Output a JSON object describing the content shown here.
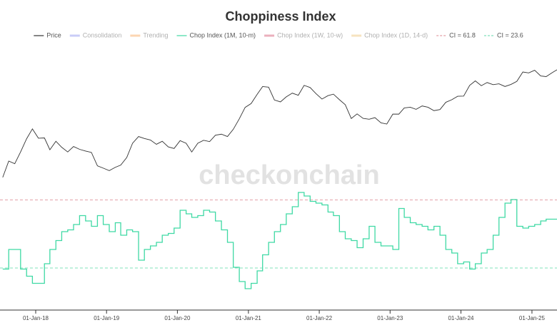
{
  "chart_data": {
    "type": "line",
    "title": "Choppiness Index",
    "watermark": "checkonchain",
    "x": [
      "2017-07-15",
      "2017-08-15",
      "2017-09-15",
      "2017-10-15",
      "2017-11-15",
      "2017-12-15",
      "2018-01-15",
      "2018-02-15",
      "2018-03-15",
      "2018-04-15",
      "2018-05-15",
      "2018-06-15",
      "2018-07-15",
      "2018-08-15",
      "2018-09-15",
      "2018-10-15",
      "2018-11-15",
      "2018-12-15",
      "2019-01-15",
      "2019-02-15",
      "2019-03-15",
      "2019-04-15",
      "2019-05-15",
      "2019-06-15",
      "2019-07-15",
      "2019-08-15",
      "2019-09-15",
      "2019-10-15",
      "2019-11-15",
      "2019-12-15",
      "2020-01-15",
      "2020-02-15",
      "2020-03-15",
      "2020-04-15",
      "2020-05-15",
      "2020-06-15",
      "2020-07-15",
      "2020-08-15",
      "2020-09-15",
      "2020-10-15",
      "2020-11-15",
      "2020-12-15",
      "2021-01-15",
      "2021-02-15",
      "2021-03-15",
      "2021-04-15",
      "2021-05-15",
      "2021-06-15",
      "2021-07-15",
      "2021-08-15",
      "2021-09-15",
      "2021-10-15",
      "2021-11-15",
      "2021-12-15",
      "2022-01-15",
      "2022-02-15",
      "2022-03-15",
      "2022-04-15",
      "2022-05-15",
      "2022-06-15",
      "2022-07-15",
      "2022-08-15",
      "2022-09-15",
      "2022-10-15",
      "2022-11-15",
      "2022-12-15",
      "2023-01-15",
      "2023-02-15",
      "2023-03-15",
      "2023-04-15",
      "2023-05-15",
      "2023-06-15",
      "2023-07-15",
      "2023-08-15",
      "2023-09-15",
      "2023-10-15",
      "2023-11-15",
      "2023-12-15",
      "2024-01-15",
      "2024-02-15",
      "2024-03-15",
      "2024-04-15",
      "2024-05-15",
      "2024-06-15",
      "2024-07-15",
      "2024-08-15",
      "2024-09-15",
      "2024-10-15",
      "2024-11-15",
      "2024-12-15",
      "2025-01-15",
      "2025-02-15",
      "2025-03-15",
      "2025-04-15",
      "2025-05-10"
    ],
    "xlim": [
      "2017-07-01",
      "2025-05-10"
    ],
    "xticks": [
      {
        "value": "2018-01-01",
        "label": "01-Jan-18"
      },
      {
        "value": "2019-01-01",
        "label": "01-Jan-19"
      },
      {
        "value": "2020-01-01",
        "label": "01-Jan-20"
      },
      {
        "value": "2021-01-01",
        "label": "01-Jan-21"
      },
      {
        "value": "2022-01-01",
        "label": "01-Jan-22"
      },
      {
        "value": "2023-01-01",
        "label": "01-Jan-23"
      },
      {
        "value": "2024-01-01",
        "label": "01-Jan-24"
      },
      {
        "value": "2025-01-01",
        "label": "01-Jan-25"
      }
    ],
    "ylim": [
      30,
      260000
    ],
    "y_log": true,
    "y2lim": [
      0,
      150
    ],
    "series": [
      {
        "name": "Price",
        "color": "#333333",
        "values": [
          2700,
          4700,
          4300,
          6400,
          10000,
          14000,
          10200,
          10300,
          6900,
          9200,
          7500,
          6400,
          7700,
          7000,
          6600,
          6300,
          4000,
          3700,
          3400,
          3800,
          4100,
          5300,
          8600,
          10800,
          10100,
          9600,
          8300,
          9200,
          7600,
          7200,
          9400,
          8600,
          6400,
          8600,
          9500,
          9100,
          11300,
          11700,
          10800,
          13800,
          19700,
          29000,
          33100,
          45200,
          58800,
          57700,
          37300,
          35000,
          41500,
          47100,
          43800,
          61300,
          57000,
          46300,
          38500,
          43200,
          45500,
          37700,
          31800,
          19900,
          23300,
          20000,
          19400,
          20500,
          17200,
          16500,
          23100,
          23100,
          28500,
          29200,
          27200,
          30500,
          29200,
          26000,
          27000,
          34500,
          37700,
          42300,
          42600,
          61200,
          71300,
          60600,
          67500,
          62700,
          64600,
          59000,
          63300,
          70200,
          96400,
          93400,
          102400,
          84300,
          82500,
          94200,
          104000
        ]
      },
      {
        "name": "Chop Index (1M, 10-m)",
        "color": "#3fd9a4",
        "axis": "y2",
        "step": true,
        "values": [
          23,
          34,
          34,
          23,
          19,
          15,
          15,
          26,
          34,
          39,
          44,
          45,
          48,
          53,
          50,
          47,
          53,
          48,
          44,
          49,
          42,
          45,
          44,
          28,
          34,
          36,
          38,
          42,
          43,
          46,
          56,
          54,
          52,
          53,
          56,
          55,
          50,
          45,
          38,
          24,
          16,
          12,
          15,
          22,
          31,
          38,
          44,
          48,
          54,
          58,
          66,
          64,
          61,
          60,
          59,
          55,
          53,
          44,
          40,
          39,
          35,
          40,
          47,
          38,
          36,
          36,
          34,
          57,
          52,
          49,
          48,
          47,
          45,
          47,
          42,
          34,
          32,
          26,
          27,
          23,
          26,
          32,
          34,
          42,
          52,
          60,
          62,
          47,
          46,
          47,
          48,
          50,
          51,
          51,
          51
        ]
      }
    ],
    "legend_only": [
      {
        "name": "Consolidation",
        "color": "#c9ccf7"
      },
      {
        "name": "Trending",
        "color": "#fcd6b2"
      },
      {
        "name": "Chop Index (1W, 10-w)",
        "color": "#ebb0bd"
      },
      {
        "name": "Chop Index (1D, 14-d)",
        "color": "#f6e3bf"
      }
    ],
    "reference_lines": [
      {
        "name": "CI = 61.8",
        "value": 61.8,
        "axis": "y2",
        "color": "#e4a0a8"
      },
      {
        "name": "CI = 23.6",
        "value": 23.6,
        "axis": "y2",
        "color": "#7fe0ba"
      }
    ]
  }
}
